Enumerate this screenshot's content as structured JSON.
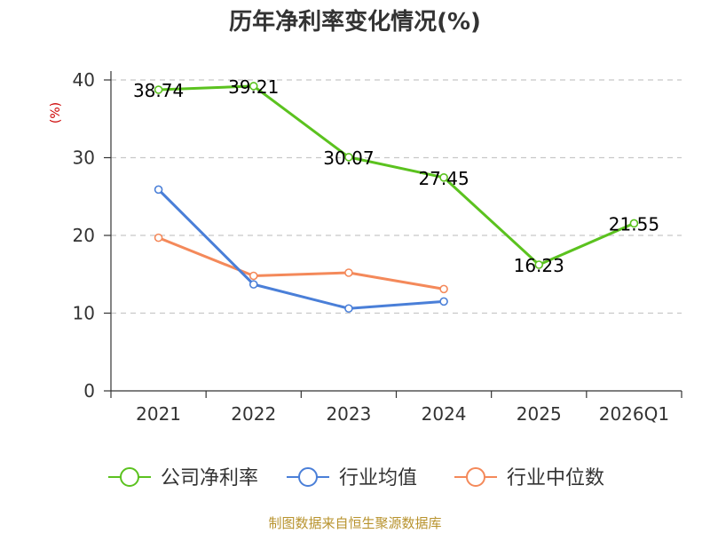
{
  "chart_data": {
    "type": "line",
    "title": "历年净利率变化情况(%)",
    "ylabel": "(%)",
    "ylim": [
      0,
      40
    ],
    "yticks": [
      0,
      10,
      20,
      30,
      40
    ],
    "categories": [
      "2021",
      "2022",
      "2023",
      "2024",
      "2025",
      "2026Q1"
    ],
    "grid": true,
    "legend_position": "bottom",
    "series": [
      {
        "name": "公司净利率",
        "color": "#5bc21f",
        "values": [
          38.74,
          39.21,
          30.07,
          27.45,
          16.23,
          21.55
        ],
        "labels": [
          "38.74",
          "39.21",
          "30.07",
          "27.45",
          "16.23",
          "21.55"
        ]
      },
      {
        "name": "行业均值",
        "color": "#4a7fd8",
        "values": [
          25.9,
          13.7,
          10.6,
          11.5,
          null,
          null
        ]
      },
      {
        "name": "行业中位数",
        "color": "#f4895a",
        "values": [
          19.7,
          14.8,
          15.2,
          13.1,
          null,
          null
        ]
      }
    ]
  },
  "source": "制图数据来自恒生聚源数据库"
}
